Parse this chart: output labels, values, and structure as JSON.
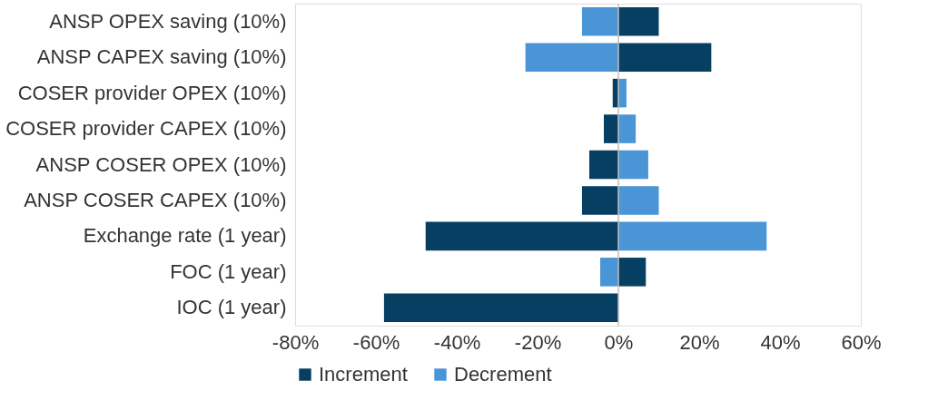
{
  "chart_data": {
    "type": "bar",
    "orientation": "horizontal",
    "stacked": true,
    "categories": [
      "ANSP OPEX saving (10%)",
      "ANSP CAPEX saving (10%)",
      "COSER provider OPEX (10%)",
      "COSER provider CAPEX (10%)",
      "ANSP COSER OPEX (10%)",
      "ANSP COSER CAPEX (10%)",
      "Exchange rate  (1 year)",
      "FOC (1 year)",
      "IOC (1 year)"
    ],
    "series": [
      {
        "name": "Increment",
        "color": "#073f63",
        "values": [
          10,
          23,
          -1.4,
          -3.6,
          -7.2,
          -9,
          -47.7,
          6.8,
          -58
        ]
      },
      {
        "name": "Decrement",
        "color": "#4a95d6",
        "values": [
          -9,
          -23,
          2,
          4.3,
          7.4,
          10,
          36.7,
          -4.5,
          null
        ]
      }
    ],
    "xlim": [
      -80,
      60
    ],
    "xticks": [
      {
        "value": -80,
        "label": "-80%"
      },
      {
        "value": -60,
        "label": "-60%"
      },
      {
        "value": -40,
        "label": "-40%"
      },
      {
        "value": -20,
        "label": "-20%"
      },
      {
        "value": 0,
        "label": "0%"
      },
      {
        "value": 20,
        "label": "20%"
      },
      {
        "value": 40,
        "label": "40%"
      },
      {
        "value": 60,
        "label": "60%"
      }
    ],
    "ref_lines": [
      {
        "axis": "x",
        "value": 0,
        "color": "#bfbfbf"
      }
    ],
    "grid": false,
    "legend": "bottom"
  }
}
